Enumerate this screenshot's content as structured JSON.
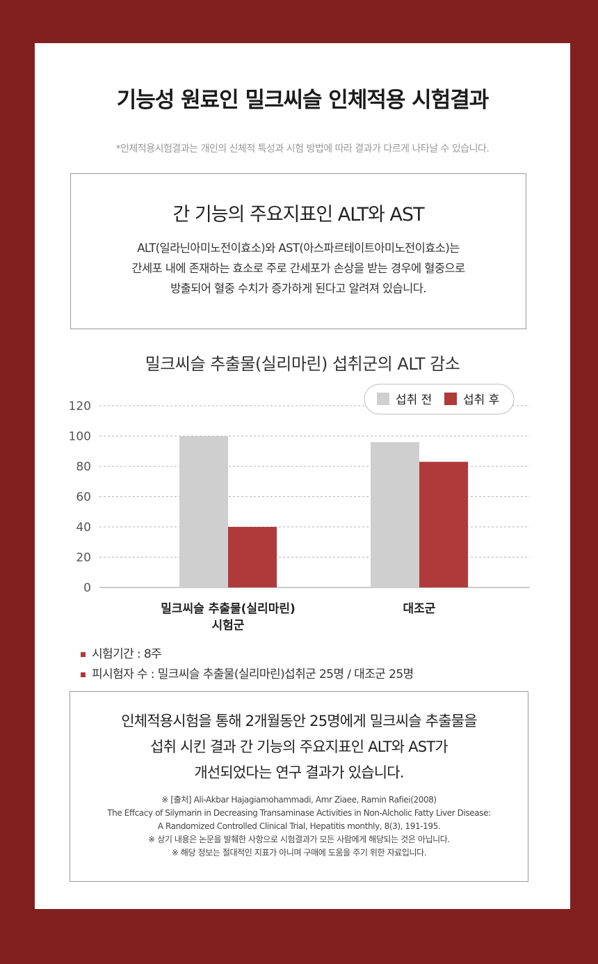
{
  "page": {
    "title": "기능성 원료인 밀크씨슬 인체적용 시험결과",
    "disclaimer": "*인체적용시험결과는 개인의 신체적 특성과 시험 방법에 따라 결과가 다르게 나타날 수 있습니다."
  },
  "info_box": {
    "title": "간 기능의 주요지표인 ALT와 AST",
    "lines": [
      "ALT(일라닌아미노전이효소)와 AST(아스파르테이트아미노전이효소)는",
      "간세포 내에 존재하는 효소로 주로 간세포가 손상을 받는 경우에 혈중으로",
      "방출되어 혈중 수치가 증가하게 된다고 알려져 있습니다."
    ]
  },
  "chart_data": {
    "type": "bar",
    "title": "밀크씨슬 추출물(실리마린) 섭취군의 ALT 감소",
    "categories": [
      "밀크씨슬 추출물(실리마린)\n시험군",
      "대조군"
    ],
    "series": [
      {
        "name": "섭취 전",
        "values": [
          100,
          96
        ],
        "color": "#cfcfcf"
      },
      {
        "name": "섭취 후",
        "values": [
          40,
          83
        ],
        "color": "#b0393a"
      }
    ],
    "ylim": [
      0,
      120
    ],
    "yticks": [
      "0",
      "20",
      "40",
      "60",
      "80",
      "100",
      "120"
    ],
    "grid": true,
    "legend_position": "top-right",
    "xlabel": "",
    "ylabel": ""
  },
  "notes": [
    "시험기간 : 8주",
    "피시험자 수 : 밀크씨슬 추출물(실리마린)섭취군 25명 / 대조군 25명"
  ],
  "summary_box": {
    "lines": [
      "인체적용시험을 통해 2개월동안 25명에게 밀크씨슬 추출물을",
      "섭취 시킨 결과 간 기능의 주요지표인 ALT와 AST가",
      "개선되었다는 연구 결과가 있습니다."
    ],
    "source_lines": [
      "※ [출처] Ali-Akbar Hajagiamohammadi, Amr Ziaee, Ramin Rafiei(2008)",
      "The Effcacy of Silymarin in Decreasing Transaminase Activities in Non-Alcholic Fatty Liver Disease:",
      "A Randomized Controlled Clinical Trial, Hepatitis monthly, 8(3), 191-195.",
      "※ 상기 내용은 논문을 발췌한 사항으로 시험결과가 모든 사람에게 해당되는 것은 아닙니다.",
      "※ 해당 정보는 절대적인 지표가 아니며 구매에 도움을 주기 위한 자료입니다."
    ]
  }
}
